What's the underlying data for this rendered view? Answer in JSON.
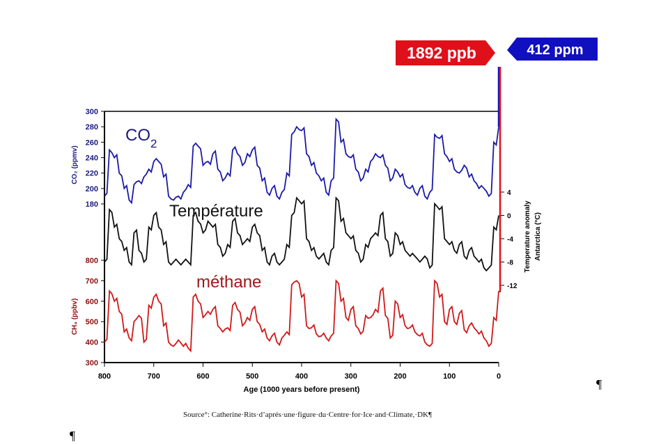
{
  "chart_data": {
    "type": "line",
    "xlabel": "Age (1000 years before present)",
    "x_ticks": [
      800,
      700,
      600,
      500,
      400,
      300,
      200,
      100,
      0
    ],
    "xlim": [
      800,
      0
    ],
    "x": [
      800,
      790,
      780,
      770,
      760,
      750,
      740,
      730,
      720,
      710,
      700,
      690,
      680,
      670,
      660,
      650,
      640,
      630,
      620,
      610,
      600,
      590,
      580,
      570,
      560,
      550,
      540,
      530,
      520,
      510,
      500,
      490,
      480,
      470,
      460,
      450,
      440,
      430,
      420,
      410,
      400,
      390,
      380,
      370,
      360,
      350,
      340,
      330,
      320,
      310,
      300,
      290,
      280,
      270,
      260,
      250,
      240,
      230,
      220,
      210,
      200,
      190,
      180,
      170,
      160,
      150,
      140,
      130,
      120,
      110,
      100,
      90,
      80,
      70,
      60,
      50,
      40,
      30,
      20,
      10,
      0
    ],
    "series": [
      {
        "name": "CO2",
        "label_main": "CO",
        "label_sub": "2",
        "axis_label": "CO₂ (ppmv)",
        "ylim": [
          180,
          300
        ],
        "y_ticks": [
          300,
          280,
          260,
          240,
          220,
          200,
          180
        ],
        "color": "#1a1aa8",
        "present_value": 412,
        "values": [
          190,
          250,
          240,
          220,
          200,
          185,
          205,
          210,
          215,
          225,
          235,
          235,
          215,
          190,
          185,
          190,
          195,
          205,
          255,
          255,
          230,
          235,
          245,
          225,
          210,
          220,
          250,
          245,
          230,
          245,
          250,
          230,
          210,
          195,
          200,
          190,
          195,
          220,
          270,
          280,
          275,
          245,
          230,
          220,
          210,
          195,
          210,
          290,
          260,
          245,
          240,
          225,
          210,
          225,
          235,
          245,
          240,
          230,
          210,
          225,
          215,
          205,
          200,
          195,
          200,
          190,
          195,
          270,
          265,
          245,
          235,
          225,
          220,
          230,
          215,
          210,
          200,
          200,
          190,
          260,
          280
        ]
      },
      {
        "name": "Température",
        "axis_label_1": "Temperature anomaly",
        "axis_label_2": "Antarctica (°C)",
        "ylim": [
          -12,
          4
        ],
        "y_ticks": [
          4,
          0,
          -4,
          -8,
          -12
        ],
        "y_tick_labels": [
          "4",
          "0",
          "-4",
          "-8",
          "-12"
        ],
        "color": "#111111",
        "values": [
          -8,
          1,
          -2,
          -4,
          -6,
          -8,
          -3,
          -6,
          -8,
          -2,
          0,
          -2,
          -5,
          -8,
          -8,
          -8,
          -8,
          -8,
          0,
          -1,
          -3,
          -1,
          -2,
          -5,
          -7,
          -5,
          -1,
          -3,
          -5,
          -4,
          -2,
          -3,
          -6,
          -8,
          -7,
          -8,
          -8,
          -5,
          0,
          3,
          2,
          -4,
          -6,
          -7,
          -7,
          -8,
          -6,
          3,
          -1,
          -3,
          -4,
          -6,
          -8,
          -5,
          -4,
          -3,
          0,
          -4,
          -7,
          -3,
          -5,
          -6,
          -7,
          -7,
          -8,
          -7,
          -9,
          2,
          1,
          -4,
          -5,
          -6,
          -5,
          -7,
          -6,
          -7,
          -8,
          -9,
          -9,
          -2,
          0
        ]
      },
      {
        "name": "méthane",
        "axis_label": "CH₄ (ppbv)",
        "ylim": [
          300,
          800
        ],
        "y_ticks": [
          800,
          700,
          600,
          500,
          400,
          300
        ],
        "color": "#d01818",
        "present_value": 1892,
        "values": [
          400,
          650,
          600,
          550,
          450,
          420,
          500,
          530,
          400,
          580,
          620,
          600,
          480,
          400,
          380,
          410,
          380,
          370,
          620,
          600,
          520,
          550,
          560,
          480,
          450,
          470,
          580,
          560,
          480,
          520,
          560,
          500,
          450,
          420,
          430,
          400,
          420,
          450,
          680,
          700,
          620,
          480,
          470,
          440,
          430,
          420,
          430,
          700,
          600,
          520,
          560,
          480,
          440,
          530,
          520,
          560,
          650,
          530,
          420,
          600,
          520,
          480,
          470,
          450,
          430,
          400,
          380,
          700,
          620,
          500,
          560,
          500,
          540,
          460,
          480,
          470,
          440,
          420,
          380,
          520,
          650
        ]
      }
    ],
    "annotations": [
      {
        "text": "1892 ppb",
        "color": "#e0101a"
      },
      {
        "text": "412 ppm",
        "color": "#1010c0"
      }
    ]
  },
  "caption": "Source°: Catherine·Rits·d’aprés·une·figure·du·Centre·for·Ice·and·Climate,·DK¶",
  "pilcrow": "¶"
}
